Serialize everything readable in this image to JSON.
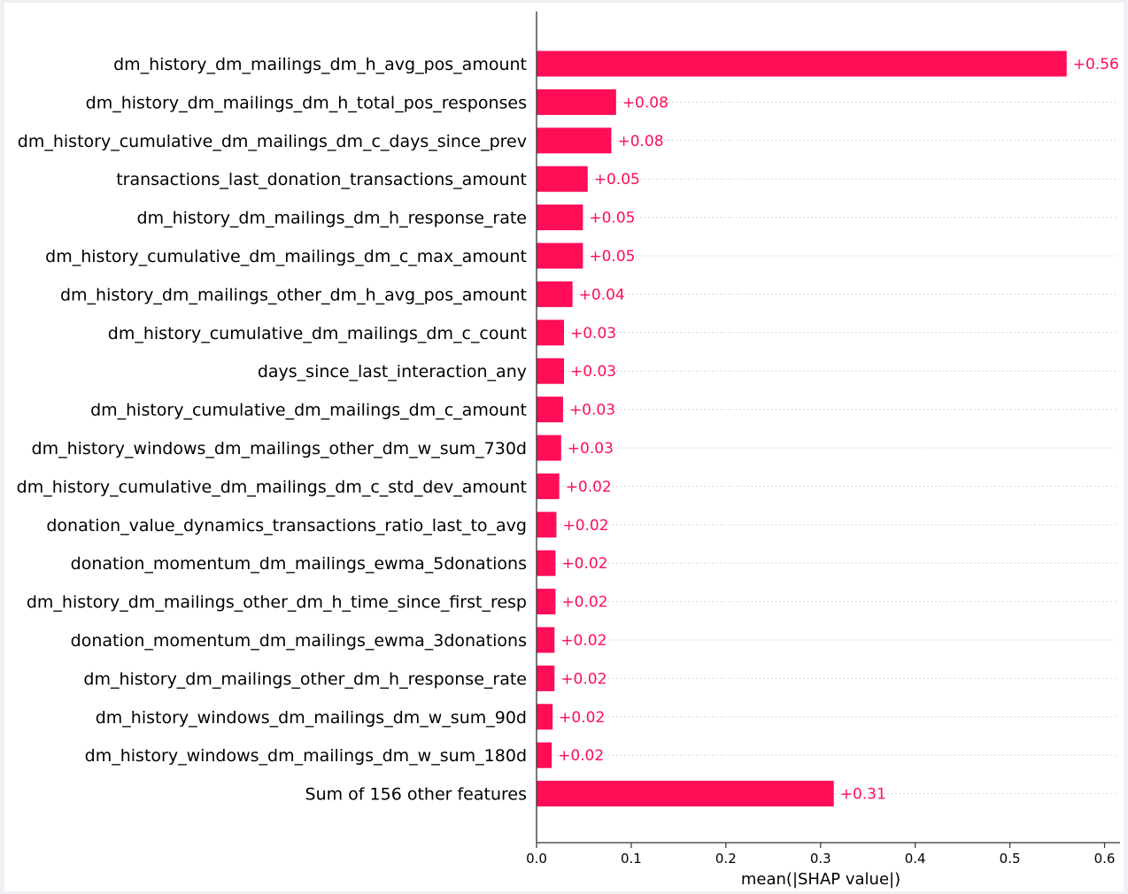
{
  "chart_data": {
    "type": "bar",
    "orientation": "horizontal",
    "categories": [
      "dm_history_dm_mailings_dm_h_avg_pos_amount",
      "dm_history_dm_mailings_dm_h_total_pos_responses",
      "dm_history_cumulative_dm_mailings_dm_c_days_since_prev",
      "transactions_last_donation_transactions_amount",
      "dm_history_dm_mailings_dm_h_response_rate",
      "dm_history_cumulative_dm_mailings_dm_c_max_amount",
      "dm_history_dm_mailings_other_dm_h_avg_pos_amount",
      "dm_history_cumulative_dm_mailings_dm_c_count",
      "days_since_last_interaction_any",
      "dm_history_cumulative_dm_mailings_dm_c_amount",
      "dm_history_windows_dm_mailings_other_dm_w_sum_730d",
      "dm_history_cumulative_dm_mailings_dm_c_std_dev_amount",
      "donation_value_dynamics_transactions_ratio_last_to_avg",
      "donation_momentum_dm_mailings_ewma_5donations",
      "dm_history_dm_mailings_other_dm_h_time_since_first_resp",
      "donation_momentum_dm_mailings_ewma_3donations",
      "dm_history_dm_mailings_other_dm_h_response_rate",
      "dm_history_windows_dm_mailings_dm_w_sum_90d",
      "dm_history_windows_dm_mailings_dm_w_sum_180d",
      "Sum of 156 other features"
    ],
    "values": [
      0.56,
      0.084,
      0.079,
      0.054,
      0.049,
      0.049,
      0.038,
      0.029,
      0.029,
      0.028,
      0.026,
      0.024,
      0.021,
      0.02,
      0.02,
      0.019,
      0.019,
      0.017,
      0.016,
      0.314
    ],
    "value_labels": [
      "+0.56",
      "+0.08",
      "+0.08",
      "+0.05",
      "+0.05",
      "+0.05",
      "+0.04",
      "+0.03",
      "+0.03",
      "+0.03",
      "+0.03",
      "+0.02",
      "+0.02",
      "+0.02",
      "+0.02",
      "+0.02",
      "+0.02",
      "+0.02",
      "+0.02",
      "+0.31"
    ],
    "xlabel": "mean(|SHAP value|)",
    "xlim": [
      0,
      0.6
    ],
    "xticks": [
      "0.0",
      "0.1",
      "0.2",
      "0.3",
      "0.4",
      "0.5",
      "0.6"
    ],
    "bar_color": "#ff0d57",
    "grid": "dotted horizontal row lines"
  }
}
